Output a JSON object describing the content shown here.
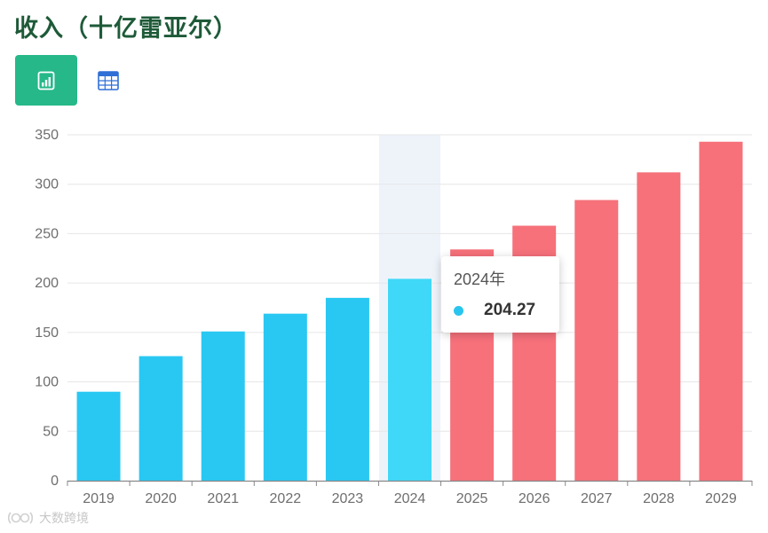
{
  "header": {
    "title": "收入（十亿雷亚尔）"
  },
  "toolbar": {
    "chart_view_icon": "bar-chart-icon",
    "table_view_icon": "table-icon"
  },
  "colors": {
    "historical": "#29c8f2",
    "highlight": "#40d8f8",
    "forecast": "#f6717a",
    "hover_band": "#eef3fa",
    "grid": "#e6e6e6",
    "accent": "#26b889",
    "title": "#1e5a38"
  },
  "tooltip": {
    "title": "2024年",
    "value": "204.27"
  },
  "watermark": {
    "text": "大数跨境"
  },
  "chart_data": {
    "type": "bar",
    "title": "收入（十亿雷亚尔）",
    "xlabel": "",
    "ylabel": "",
    "categories": [
      "2019",
      "2020",
      "2021",
      "2022",
      "2023",
      "2024",
      "2025",
      "2026",
      "2027",
      "2028",
      "2029"
    ],
    "values": [
      90,
      126,
      151,
      169,
      185,
      204.27,
      234,
      258,
      284,
      312,
      343
    ],
    "forecast_from": "2025",
    "highlighted": "2024",
    "ylim": [
      0,
      350
    ],
    "yticks": [
      0,
      50,
      100,
      150,
      200,
      250,
      300,
      350
    ],
    "grid": true,
    "legend": "none"
  }
}
